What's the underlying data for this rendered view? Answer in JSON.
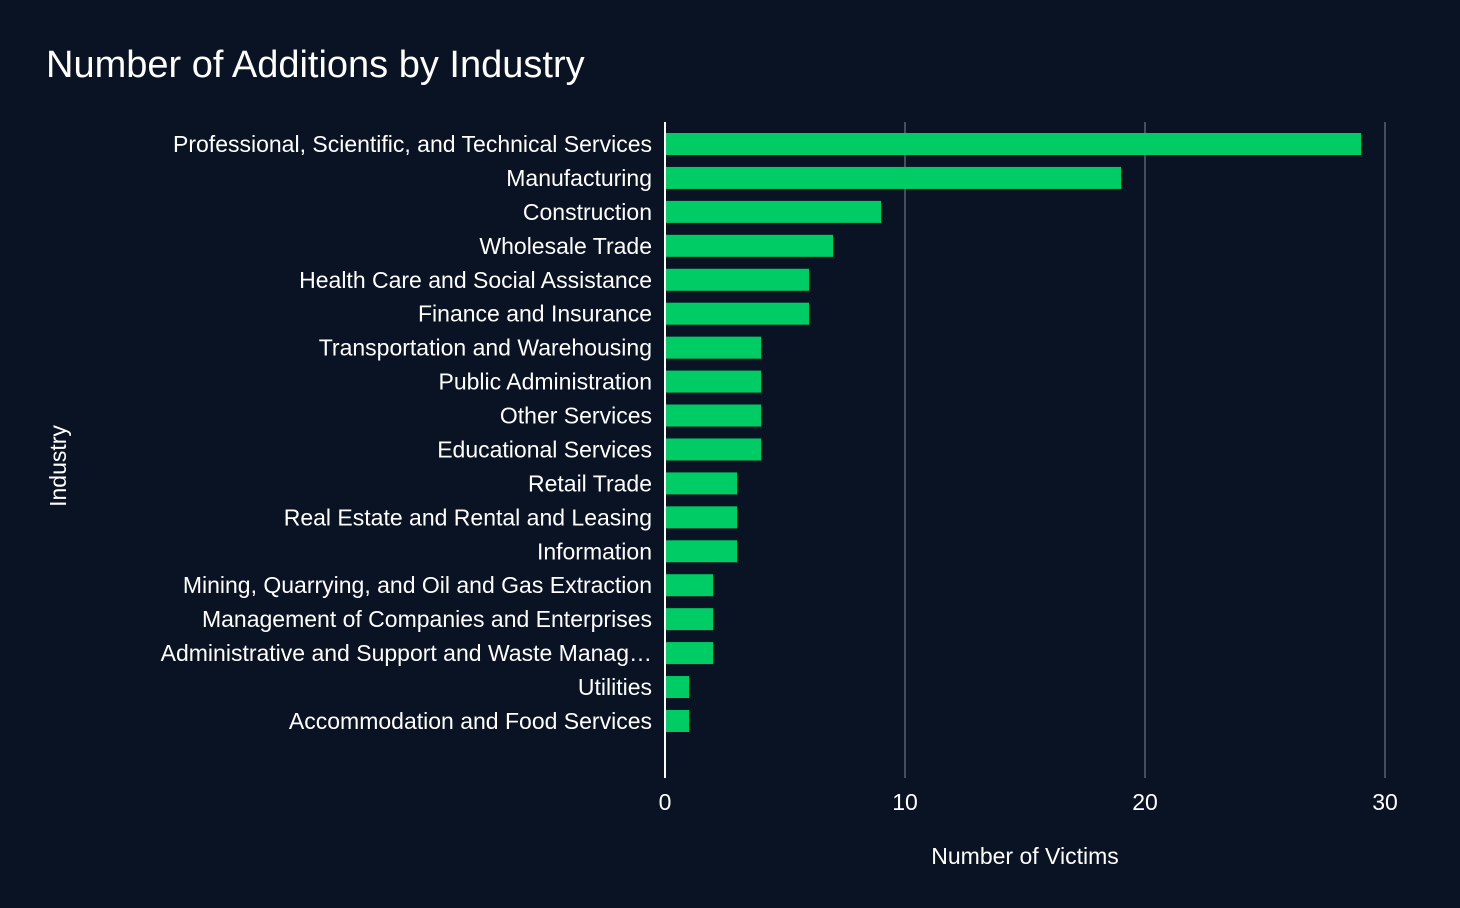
{
  "chart_data": {
    "type": "bar",
    "orientation": "horizontal",
    "title": "Number of Additions by Industry",
    "xlabel": "Number of Victims",
    "ylabel": "Industry",
    "xlim": [
      0,
      30
    ],
    "xticks": [
      0,
      10,
      20,
      30
    ],
    "grid": true,
    "legend": "none",
    "bar_color": "#00cc66",
    "background": "#0a1324",
    "categories": [
      "Professional, Scientific, and Technical Services",
      "Manufacturing",
      "Construction",
      "Wholesale Trade",
      "Health Care and Social Assistance",
      "Finance and Insurance",
      "Transportation and Warehousing",
      "Public Administration",
      "Other Services",
      "Educational Services",
      "Retail Trade",
      "Real Estate and Rental and Leasing",
      "Information",
      "Mining, Quarrying, and Oil and Gas Extraction",
      "Management of Companies and Enterprises",
      "Administrative and Support and Waste Manag…",
      "Utilities",
      "Accommodation and Food Services"
    ],
    "values": [
      29,
      19,
      9,
      7,
      6,
      6,
      4,
      4,
      4,
      4,
      3,
      3,
      3,
      2,
      2,
      2,
      1,
      1
    ]
  }
}
